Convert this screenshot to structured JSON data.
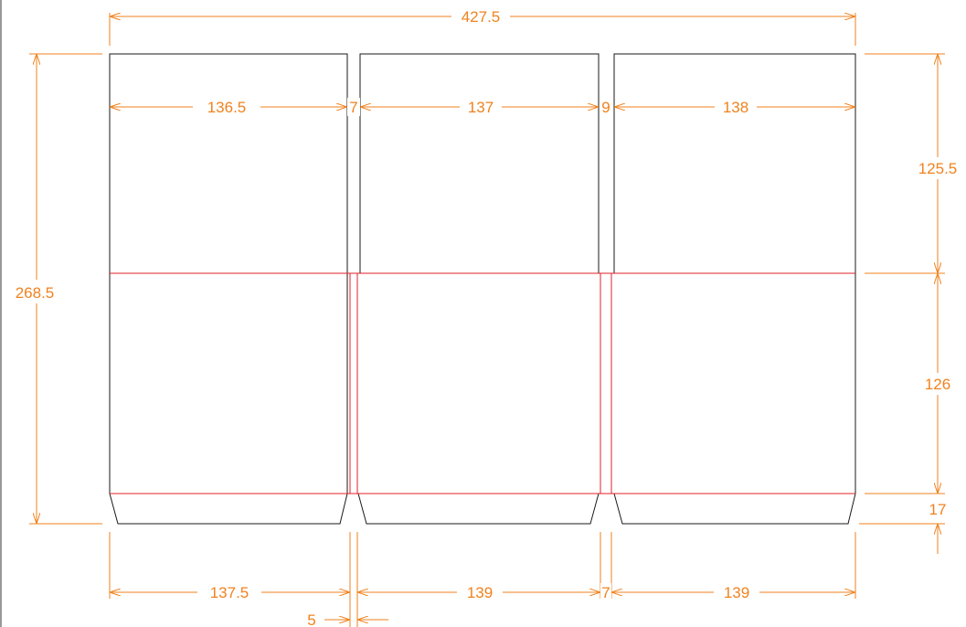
{
  "diagram": {
    "colors": {
      "cut_line": "#1a1a1a",
      "fold_line": "#e0202a",
      "dimension": "#f0821e",
      "background": "#ffffff"
    },
    "dimensions": {
      "overall_width": "427.5",
      "top_panel_1": "136.5",
      "top_gap_1": "7",
      "top_panel_2": "137",
      "top_gap_2": "9",
      "top_panel_3": "138",
      "overall_height": "268.5",
      "upper_height": "125.5",
      "lower_height": "126",
      "flap_height": "17",
      "bottom_panel_1": "137.5",
      "bottom_gap_1": "5",
      "bottom_panel_2": "139",
      "bottom_gap_2": "7",
      "bottom_panel_3": "139"
    }
  }
}
